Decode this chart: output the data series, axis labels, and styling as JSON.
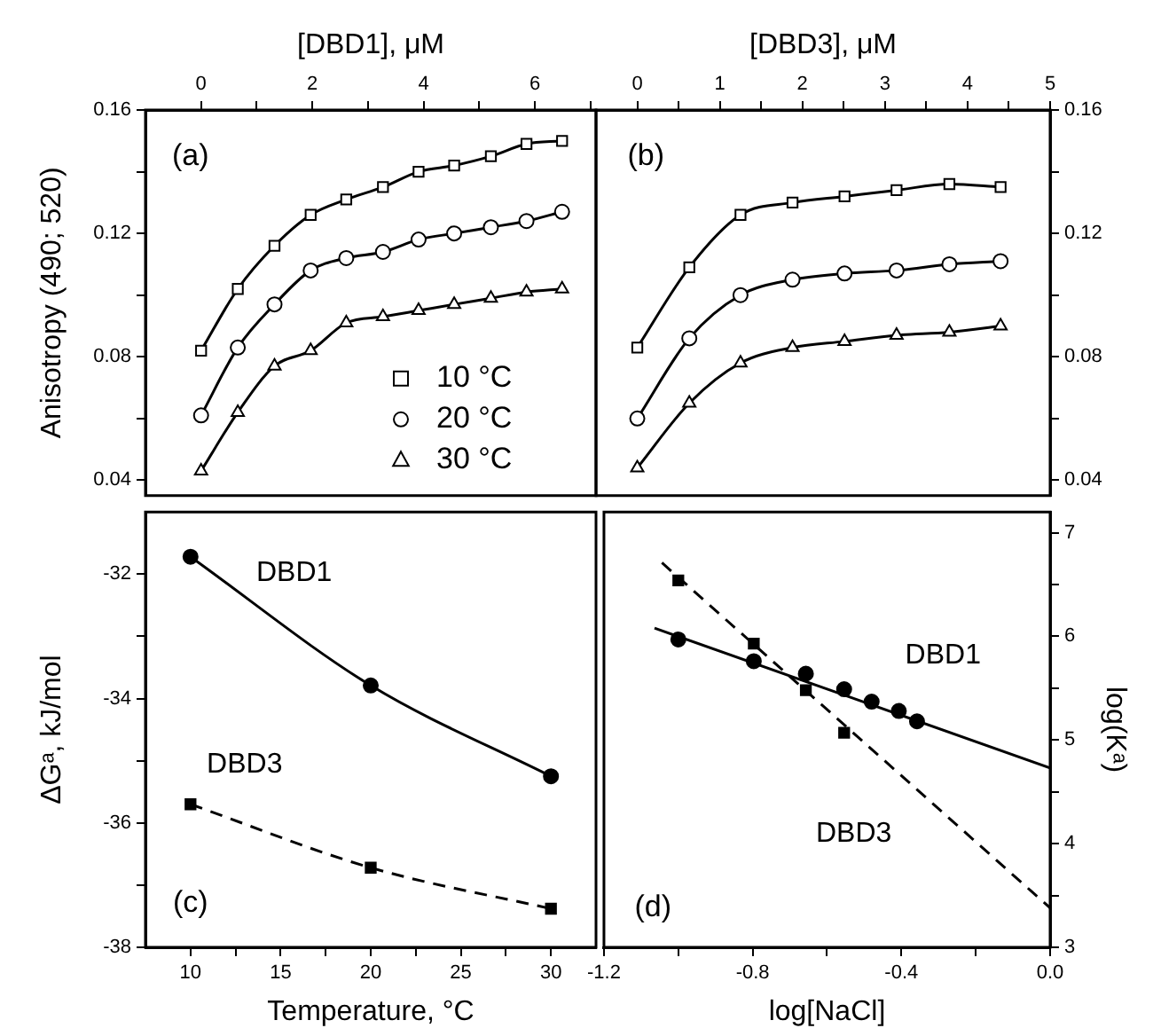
{
  "chart_data": [
    {
      "type": "line",
      "ylabel": "Anisotropy (490; 520)",
      "xlabel": "[DBD1], μM",
      "xlim": [
        -1,
        7.1
      ],
      "xticks": [
        0,
        {
          "value": 1,
          "label": null
        },
        2,
        {
          "value": 3,
          "label": null
        },
        4,
        {
          "value": 5,
          "label": null
        },
        6,
        {
          "value": 7,
          "label": null
        }
      ],
      "ylim": [
        0.035,
        0.16
      ],
      "yticks": [
        0.04,
        {
          "value": 0.06,
          "label": null
        },
        0.08,
        {
          "value": 0.1,
          "label": null
        },
        0.12,
        {
          "value": 0.14,
          "label": null
        },
        0.16
      ],
      "grid": false,
      "legend": "bottom right",
      "annotations": [
        "(a)"
      ],
      "x": [
        0,
        0.66,
        1.32,
        1.97,
        2.61,
        3.27,
        3.91,
        4.55,
        5.21,
        5.85,
        6.49
      ],
      "series": [
        {
          "name": "10 °C",
          "color": "#000000",
          "marker": "square",
          "values": [
            0.082,
            0.102,
            0.116,
            0.126,
            0.131,
            0.135,
            0.14,
            0.142,
            0.145,
            0.149,
            0.15
          ]
        },
        {
          "name": "20 °C",
          "color": "#000000",
          "marker": "circle",
          "values": [
            0.061,
            0.083,
            0.097,
            0.108,
            0.112,
            0.114,
            0.118,
            0.12,
            0.122,
            0.124,
            0.127
          ]
        },
        {
          "name": "30 °C",
          "color": "#000000",
          "marker": "triangle",
          "values": [
            0.043,
            0.062,
            0.077,
            0.082,
            0.091,
            0.093,
            0.095,
            0.097,
            0.099,
            0.101,
            0.102
          ]
        }
      ]
    },
    {
      "type": "line",
      "xlabel": "[DBD3], μM",
      "xlim": [
        -0.5,
        5
      ],
      "xticks": [
        0,
        {
          "value": 0.5,
          "label": null
        },
        1,
        {
          "value": 1.5,
          "label": null
        },
        2,
        {
          "value": 2.5,
          "label": null
        },
        3,
        {
          "value": 3.5,
          "label": null
        },
        4,
        {
          "value": 4.5,
          "label": null
        },
        5
      ],
      "y2lim": [
        0.035,
        0.16
      ],
      "y2ticks": [
        0.04,
        {
          "value": 0.06,
          "label": null
        },
        0.08,
        {
          "value": 0.1,
          "label": null
        },
        0.12,
        {
          "value": 0.14,
          "label": null
        },
        0.16
      ],
      "grid": false,
      "annotations": [
        "(b)"
      ],
      "x": [
        0,
        0.63,
        1.25,
        1.88,
        2.51,
        3.14,
        3.78,
        4.4
      ],
      "series": [
        {
          "color": "#000000",
          "marker": "square",
          "axis": "y2",
          "values": [
            0.083,
            0.109,
            0.126,
            0.13,
            0.132,
            0.134,
            0.136,
            0.135
          ]
        },
        {
          "color": "#000000",
          "marker": "circle",
          "axis": "y2",
          "values": [
            0.06,
            0.086,
            0.1,
            0.105,
            0.107,
            0.108,
            0.11,
            0.111
          ]
        },
        {
          "color": "#000000",
          "marker": "triangle",
          "axis": "y2",
          "values": [
            0.044,
            0.065,
            0.078,
            0.083,
            0.085,
            0.087,
            0.088,
            0.09
          ]
        }
      ]
    },
    {
      "type": "line",
      "xlabel": "Temperature, °C",
      "ylabel": "ΔGᵃ, kJ/mol",
      "xlim": [
        7.5,
        32.5
      ],
      "xticks": [
        10,
        {
          "value": 12.5,
          "label": null
        },
        15,
        {
          "value": 17.5,
          "label": null
        },
        20,
        {
          "value": 22.5,
          "label": null
        },
        25,
        {
          "value": 27.5,
          "label": null
        },
        30
      ],
      "ylim": [
        -38,
        -31
      ],
      "yticks": [
        -38,
        {
          "value": -37,
          "label": null
        },
        -36,
        {
          "value": -35,
          "label": null
        },
        -34,
        {
          "value": -33,
          "label": null
        },
        -32
      ],
      "grid": false,
      "annotations": [
        "(c)",
        "DBD1",
        "DBD3"
      ],
      "x": [
        10,
        20,
        30
      ],
      "series": [
        {
          "color": "#000000",
          "marker": "circle",
          "line_style": "solid",
          "values": [
            -31.72,
            -33.79,
            -35.25
          ]
        },
        {
          "color": "#000000",
          "marker": "square",
          "line_style": "dashed",
          "values": [
            -35.7,
            -36.72,
            -37.38
          ]
        }
      ]
    },
    {
      "type": "scatter",
      "xlabel": "log[NaCl]",
      "y2label": "log(Kᵃ)",
      "xlim": [
        -1.2,
        0
      ],
      "xticks": [
        -1.2,
        {
          "value": -1,
          "label": null
        },
        -0.8,
        {
          "value": -0.6,
          "label": null
        },
        -0.4,
        {
          "value": -0.2,
          "label": null
        },
        {
          "value": 0,
          "label": "0.0"
        }
      ],
      "y2lim": [
        3,
        7.2
      ],
      "y2ticks": [
        3,
        {
          "value": 3.5,
          "label": null
        },
        4,
        {
          "value": 4.5,
          "label": null
        },
        5,
        {
          "value": 5.5,
          "label": null
        },
        6,
        {
          "value": 6.5,
          "label": null
        },
        7
      ],
      "grid": false,
      "annotations": [
        "(d)",
        "DBD1",
        "DBD3"
      ],
      "series": [
        {
          "color": "#000000",
          "marker": "circle",
          "axis": "y2",
          "x": [
            -1,
            -0.797,
            -0.657,
            -0.554,
            -0.48,
            -0.407,
            -0.358
          ],
          "values": [
            5.97,
            5.76,
            5.64,
            5.49,
            5.37,
            5.28,
            5.18
          ]
        },
        {
          "color": "#000000",
          "marker": "square",
          "axis": "y2",
          "x": [
            -1,
            -0.797,
            -0.657,
            -0.554
          ],
          "values": [
            6.54,
            5.93,
            5.48,
            5.07
          ]
        },
        {
          "type": "line",
          "color": "#000000",
          "marker": "none",
          "line_style": "solid",
          "axis": "y2",
          "x": [
            -1.064,
            0
          ],
          "values": [
            6.08,
            4.73
          ]
        },
        {
          "type": "line",
          "color": "#000000",
          "marker": "none",
          "line_style": "dashed",
          "axis": "y2",
          "x": [
            -1.044,
            0
          ],
          "values": [
            6.71,
            3.38
          ]
        }
      ]
    }
  ]
}
